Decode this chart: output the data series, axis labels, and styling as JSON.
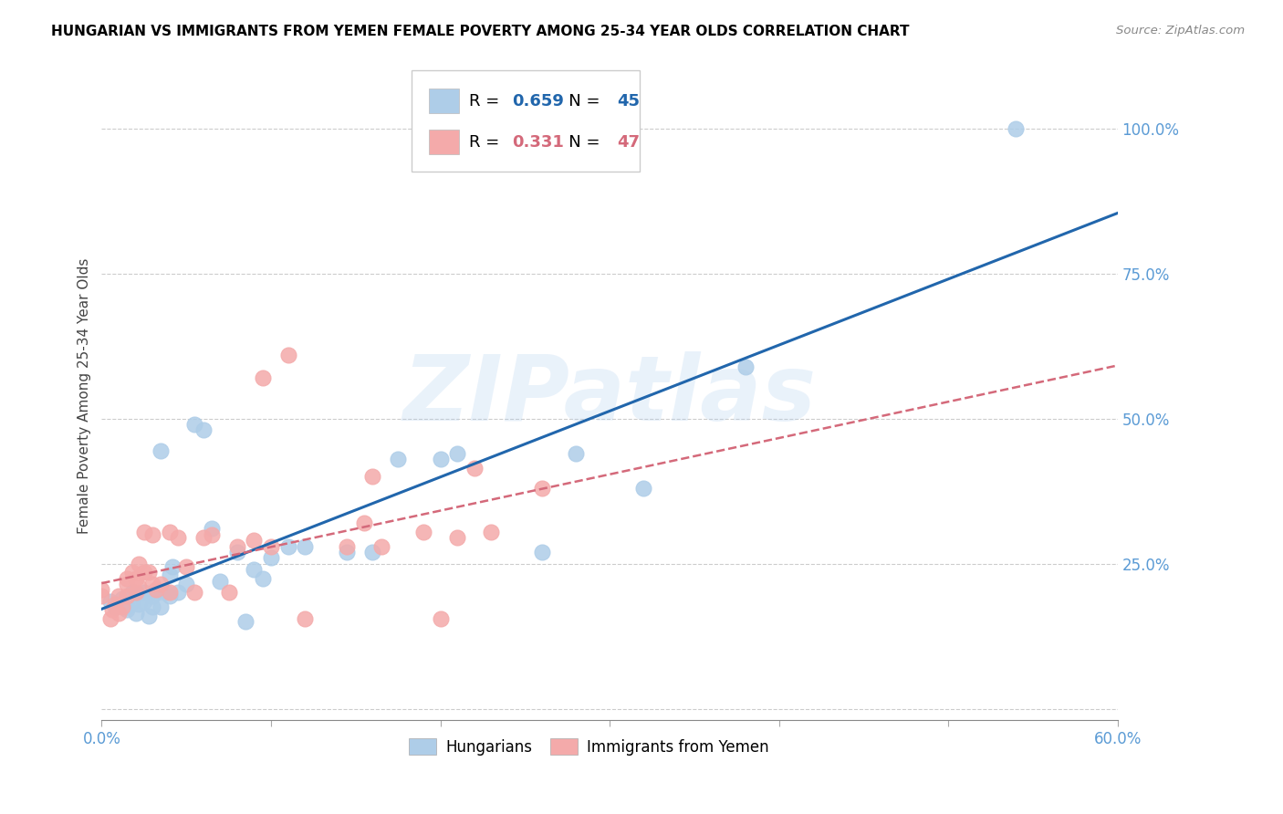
{
  "title": "HUNGARIAN VS IMMIGRANTS FROM YEMEN FEMALE POVERTY AMONG 25-34 YEAR OLDS CORRELATION CHART",
  "source": "Source: ZipAtlas.com",
  "ylabel": "Female Poverty Among 25-34 Year Olds",
  "xlim": [
    0.0,
    0.6
  ],
  "ylim": [
    -0.02,
    1.1
  ],
  "x_tick_positions": [
    0.0,
    0.1,
    0.2,
    0.3,
    0.4,
    0.5,
    0.6
  ],
  "x_tick_labels": [
    "0.0%",
    "",
    "",
    "",
    "",
    "",
    "60.0%"
  ],
  "ylabel_vals": [
    0.0,
    0.25,
    0.5,
    0.75,
    1.0
  ],
  "ylabel_ticks": [
    "",
    "25.0%",
    "50.0%",
    "75.0%",
    "100.0%"
  ],
  "blue_R": 0.659,
  "blue_N": 45,
  "pink_R": 0.331,
  "pink_N": 47,
  "blue_label": "Hungarians",
  "pink_label": "Immigrants from Yemen",
  "blue_color": "#aecde8",
  "pink_color": "#f4aaaa",
  "blue_line_color": "#2166ac",
  "pink_line_color": "#d4697a",
  "axis_tick_color": "#5b9bd5",
  "watermark": "ZIPatlas",
  "blue_x": [
    0.005,
    0.008,
    0.01,
    0.012,
    0.015,
    0.015,
    0.018,
    0.018,
    0.02,
    0.022,
    0.025,
    0.025,
    0.028,
    0.03,
    0.03,
    0.032,
    0.035,
    0.035,
    0.038,
    0.04,
    0.04,
    0.042,
    0.045,
    0.05,
    0.055,
    0.06,
    0.065,
    0.07,
    0.08,
    0.085,
    0.09,
    0.095,
    0.1,
    0.11,
    0.12,
    0.145,
    0.16,
    0.175,
    0.2,
    0.21,
    0.26,
    0.28,
    0.32,
    0.38,
    0.54
  ],
  "blue_y": [
    0.185,
    0.175,
    0.18,
    0.19,
    0.17,
    0.175,
    0.185,
    0.2,
    0.165,
    0.18,
    0.185,
    0.2,
    0.16,
    0.175,
    0.195,
    0.2,
    0.175,
    0.445,
    0.2,
    0.195,
    0.23,
    0.245,
    0.2,
    0.215,
    0.49,
    0.48,
    0.31,
    0.22,
    0.27,
    0.15,
    0.24,
    0.225,
    0.26,
    0.28,
    0.28,
    0.27,
    0.27,
    0.43,
    0.43,
    0.44,
    0.27,
    0.44,
    0.38,
    0.59,
    1.0
  ],
  "pink_x": [
    0.0,
    0.0,
    0.005,
    0.006,
    0.008,
    0.01,
    0.01,
    0.012,
    0.015,
    0.015,
    0.015,
    0.018,
    0.02,
    0.02,
    0.022,
    0.022,
    0.025,
    0.025,
    0.028,
    0.03,
    0.03,
    0.032,
    0.035,
    0.04,
    0.04,
    0.045,
    0.05,
    0.055,
    0.06,
    0.065,
    0.075,
    0.08,
    0.09,
    0.095,
    0.1,
    0.11,
    0.12,
    0.145,
    0.155,
    0.16,
    0.165,
    0.19,
    0.2,
    0.21,
    0.22,
    0.23,
    0.26
  ],
  "pink_y": [
    0.195,
    0.205,
    0.155,
    0.17,
    0.18,
    0.165,
    0.195,
    0.175,
    0.195,
    0.215,
    0.225,
    0.235,
    0.2,
    0.225,
    0.21,
    0.25,
    0.235,
    0.305,
    0.235,
    0.215,
    0.3,
    0.205,
    0.215,
    0.2,
    0.305,
    0.295,
    0.245,
    0.2,
    0.295,
    0.3,
    0.2,
    0.28,
    0.29,
    0.57,
    0.28,
    0.61,
    0.155,
    0.28,
    0.32,
    0.4,
    0.28,
    0.305,
    0.155,
    0.295,
    0.415,
    0.305,
    0.38
  ]
}
